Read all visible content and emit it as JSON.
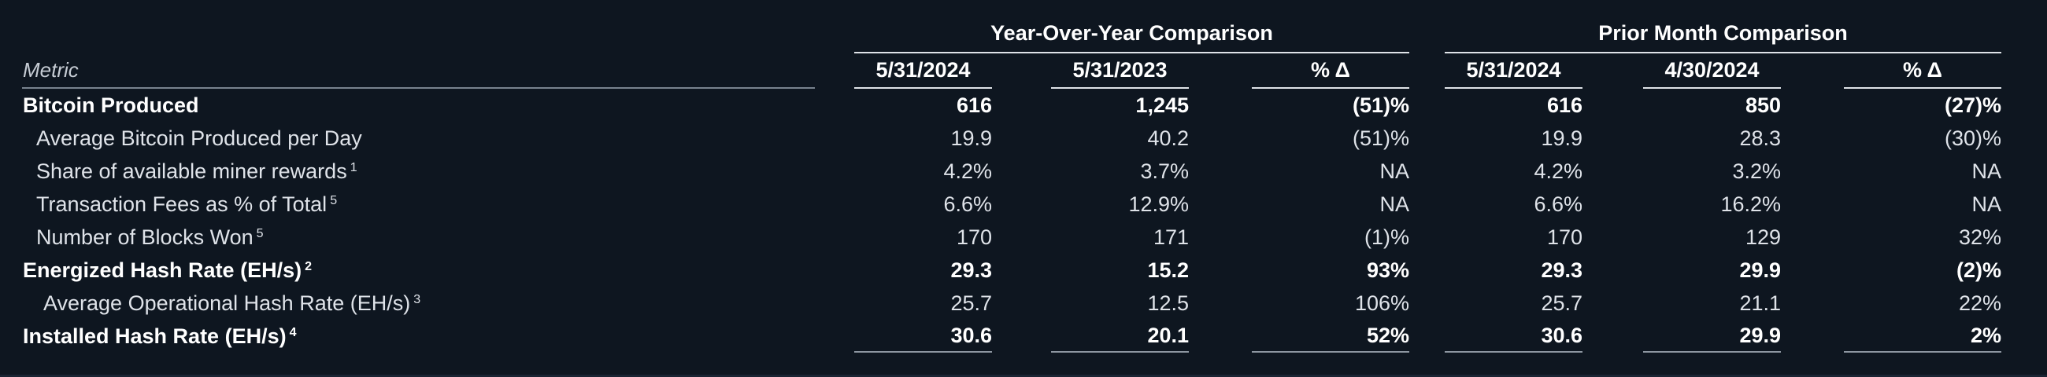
{
  "table": {
    "metric_header": "Metric",
    "groups": [
      {
        "title": "Year-Over-Year Comparison",
        "columns": [
          "5/31/2024",
          "5/31/2023",
          "% Δ"
        ]
      },
      {
        "title": "Prior Month Comparison",
        "columns": [
          "5/31/2024",
          "4/30/2024",
          "% Δ"
        ]
      }
    ],
    "rows": [
      {
        "label": "Bitcoin Produced",
        "sup": "",
        "bold": true,
        "values": [
          "616",
          "1,245",
          "(51)%",
          "616",
          "850",
          "(27)%"
        ]
      },
      {
        "label": "Average Bitcoin Produced per Day",
        "sup": "",
        "bold": false,
        "values": [
          "19.9",
          "40.2",
          "(51)%",
          "19.9",
          "28.3",
          "(30)%"
        ]
      },
      {
        "label": "Share of available miner rewards",
        "sup": "1",
        "bold": false,
        "values": [
          "4.2%",
          "3.7%",
          "NA",
          "4.2%",
          "3.2%",
          "NA"
        ]
      },
      {
        "label": "Transaction Fees as % of Total",
        "sup": "5",
        "bold": false,
        "values": [
          "6.6%",
          "12.9%",
          "NA",
          "6.6%",
          "16.2%",
          "NA"
        ]
      },
      {
        "label": "Number of Blocks Won",
        "sup": "5",
        "bold": false,
        "values": [
          "170",
          "171",
          "(1)%",
          "170",
          "129",
          "32%"
        ]
      },
      {
        "label": "Energized Hash Rate (EH/s)",
        "sup": "2",
        "bold": true,
        "values": [
          "29.3",
          "15.2",
          "93%",
          "29.3",
          "29.9",
          "(2)%"
        ]
      },
      {
        "label": "Average Operational Hash Rate (EH/s)",
        "sup": "3",
        "bold": false,
        "values": [
          "25.7",
          "12.5",
          "106%",
          "25.7",
          "21.1",
          "22%"
        ]
      },
      {
        "label": "Installed Hash Rate (EH/s)",
        "sup": "4",
        "bold": true,
        "values": [
          "30.6",
          "20.1",
          "52%",
          "30.6",
          "29.9",
          "2%"
        ]
      }
    ],
    "colors": {
      "background": "#0e1620",
      "text_regular": "#dfe3e9",
      "text_bold": "#ffffff",
      "rule_bright": "#dfe3e8",
      "rule_dim": "#78828e"
    }
  }
}
